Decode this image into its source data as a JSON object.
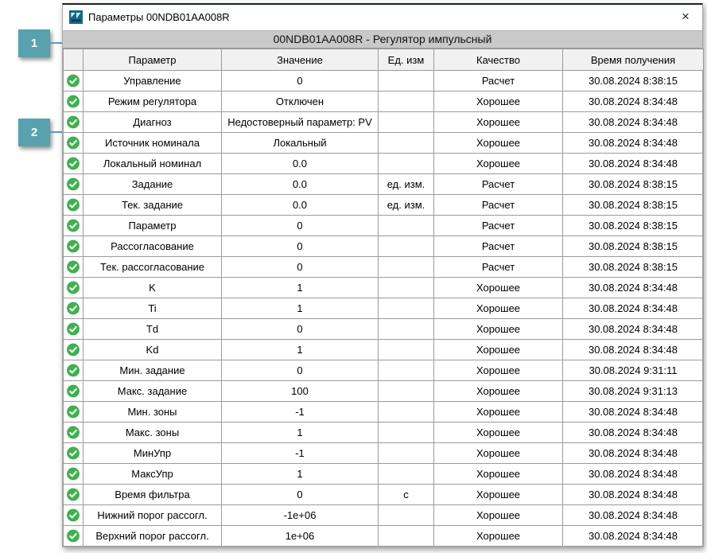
{
  "window": {
    "title": "Параметры 00NDB01AA008R",
    "close_glyph": "×",
    "caption": "00NDB01AA008R - Регулятор импульсный"
  },
  "callouts": [
    {
      "label": "1"
    },
    {
      "label": "2"
    }
  ],
  "table": {
    "headers": {
      "status": "",
      "param": "Параметр",
      "value": "Значение",
      "unit": "Ед. изм",
      "quality": "Качество",
      "time": "Время получения"
    },
    "rows": [
      {
        "param": "Управление",
        "value": "0",
        "unit": "",
        "quality": "Расчет",
        "time": "30.08.2024 8:38:15"
      },
      {
        "param": "Режим регулятора",
        "value": "Отключен",
        "unit": "",
        "quality": "Хорошее",
        "time": "30.08.2024 8:34:48"
      },
      {
        "param": "Диагноз",
        "value": "Недостоверный параметр: PV",
        "unit": "",
        "quality": "Хорошее",
        "time": "30.08.2024 8:34:48"
      },
      {
        "param": "Источник номинала",
        "value": "Локальный",
        "unit": "",
        "quality": "Хорошее",
        "time": "30.08.2024 8:34:48"
      },
      {
        "param": "Локальный номинал",
        "value": "0.0",
        "unit": "",
        "quality": "Хорошее",
        "time": "30.08.2024 8:34:48"
      },
      {
        "param": "Задание",
        "value": "0.0",
        "unit": "ед. изм.",
        "quality": "Расчет",
        "time": "30.08.2024 8:38:15"
      },
      {
        "param": "Тек. задание",
        "value": "0.0",
        "unit": "ед. изм.",
        "quality": "Расчет",
        "time": "30.08.2024 8:38:15"
      },
      {
        "param": "Параметр",
        "value": "0",
        "unit": "",
        "quality": "Расчет",
        "time": "30.08.2024 8:38:15"
      },
      {
        "param": "Рассогласование",
        "value": "0",
        "unit": "",
        "quality": "Расчет",
        "time": "30.08.2024 8:38:15"
      },
      {
        "param": "Тек. рассогласование",
        "value": "0",
        "unit": "",
        "quality": "Расчет",
        "time": "30.08.2024 8:38:15"
      },
      {
        "param": "K",
        "value": "1",
        "unit": "",
        "quality": "Хорошее",
        "time": "30.08.2024 8:34:48"
      },
      {
        "param": "Ti",
        "value": "1",
        "unit": "",
        "quality": "Хорошее",
        "time": "30.08.2024 8:34:48"
      },
      {
        "param": "Td",
        "value": "0",
        "unit": "",
        "quality": "Хорошее",
        "time": "30.08.2024 8:34:48"
      },
      {
        "param": "Kd",
        "value": "1",
        "unit": "",
        "quality": "Хорошее",
        "time": "30.08.2024 8:34:48"
      },
      {
        "param": "Мин. задание",
        "value": "0",
        "unit": "",
        "quality": "Хорошее",
        "time": "30.08.2024 9:31:11"
      },
      {
        "param": "Макс. задание",
        "value": "100",
        "unit": "",
        "quality": "Хорошее",
        "time": "30.08.2024 9:31:13"
      },
      {
        "param": "Мин. зоны",
        "value": "-1",
        "unit": "",
        "quality": "Хорошее",
        "time": "30.08.2024 8:34:48"
      },
      {
        "param": "Макс. зоны",
        "value": "1",
        "unit": "",
        "quality": "Хорошее",
        "time": "30.08.2024 8:34:48"
      },
      {
        "param": "МинУпр",
        "value": "-1",
        "unit": "",
        "quality": "Хорошее",
        "time": "30.08.2024 8:34:48"
      },
      {
        "param": "МаксУпр",
        "value": "1",
        "unit": "",
        "quality": "Хорошее",
        "time": "30.08.2024 8:34:48"
      },
      {
        "param": "Время фильтра",
        "value": "0",
        "unit": "с",
        "quality": "Хорошее",
        "time": "30.08.2024 8:34:48"
      },
      {
        "param": "Нижний порог рассогл.",
        "value": "-1e+06",
        "unit": "",
        "quality": "Хорошее",
        "time": "30.08.2024 8:34:48"
      },
      {
        "param": "Верхний порог рассогл.",
        "value": "1e+06",
        "unit": "",
        "quality": "Хорошее",
        "time": "30.08.2024 8:34:48"
      }
    ]
  },
  "colors": {
    "callout_badge": "#58a1af",
    "status_ok_green": "#3cb44b",
    "caption_bg": "#c9c9c9",
    "table_header_bg": "#f1f1f1",
    "grid_line": "#9b9b9b",
    "window_top_border": "#17212d"
  },
  "icons": {
    "app": "app-logo-icon",
    "status_ok": "status-ok-icon",
    "close": "close-icon"
  }
}
